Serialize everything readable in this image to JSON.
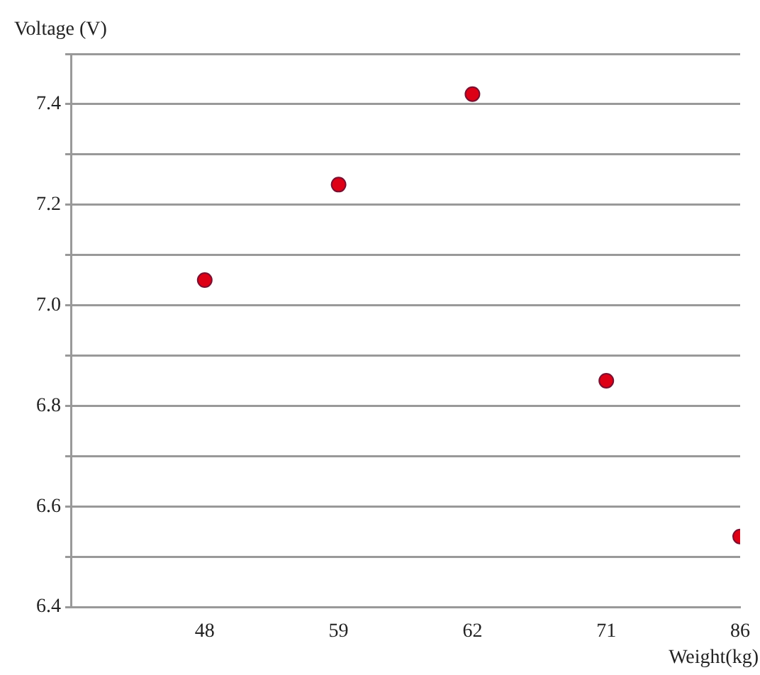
{
  "chart_data": {
    "type": "scatter",
    "xlabel": "Weight(kg)",
    "ylabel": "Voltage (V)",
    "categories": [
      "48",
      "59",
      "62",
      "71",
      "86"
    ],
    "series": [
      {
        "color": "#dd0016",
        "values": [
          7.05,
          7.24,
          7.42,
          6.85,
          6.54
        ]
      }
    ],
    "ylim": [
      6.4,
      7.5
    ],
    "yticks": [
      {
        "value": 6.4,
        "label": "6.4"
      },
      {
        "value": 6.5,
        "label": null
      },
      {
        "value": 6.6,
        "label": "6.6"
      },
      {
        "value": 6.7,
        "label": null
      },
      {
        "value": 6.8,
        "label": "6.8"
      },
      {
        "value": 6.9,
        "label": null
      },
      {
        "value": 7.0,
        "label": "7.0"
      },
      {
        "value": 7.1,
        "label": null
      },
      {
        "value": 7.2,
        "label": "7.2"
      },
      {
        "value": 7.3,
        "label": null
      },
      {
        "value": 7.4,
        "label": "7.4"
      },
      {
        "value": 7.5,
        "label": null
      }
    ],
    "grid": "y",
    "legend": false,
    "marker": "circle"
  }
}
